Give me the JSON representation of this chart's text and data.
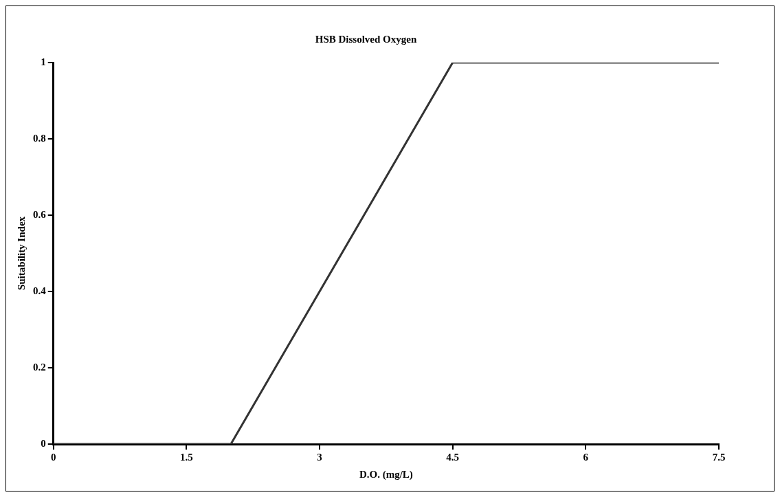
{
  "chart_data": {
    "type": "line",
    "title": "HSB Dissolved Oxygen",
    "xlabel": "D.O. (mg/L)",
    "ylabel": "Suitability Index",
    "x": [
      0,
      2,
      4.5,
      7.5
    ],
    "series": [
      {
        "color": "#333333",
        "values": [
          0,
          0,
          1,
          1
        ]
      }
    ],
    "xlim": [
      0,
      7.5
    ],
    "xticks": [
      0,
      1.5,
      3,
      4.5,
      6,
      7.5
    ],
    "ylim": [
      0,
      1
    ],
    "yticks": [
      0,
      0.2,
      0.4,
      0.6,
      0.8,
      1
    ],
    "grid": false,
    "legend": false,
    "marker": "none",
    "line_style": "solid"
  }
}
